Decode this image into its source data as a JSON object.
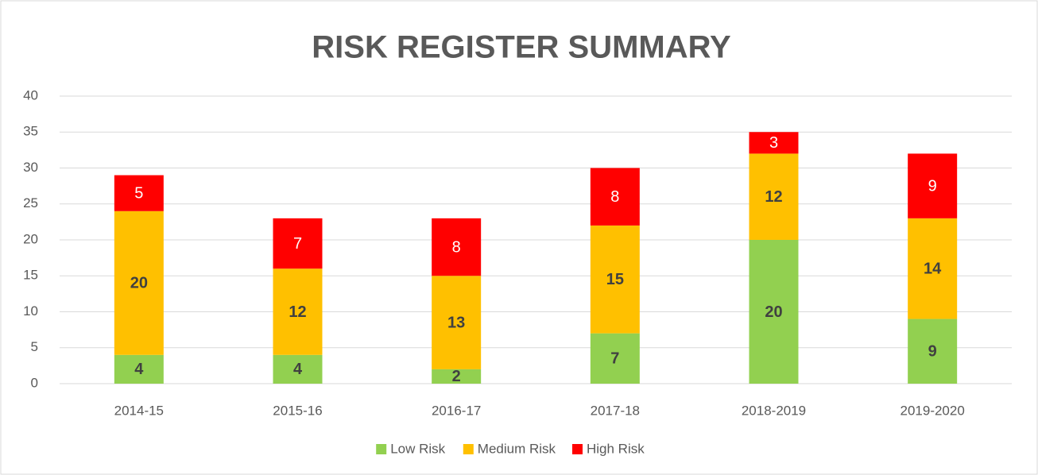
{
  "chart_data": {
    "type": "stacked_bar",
    "title": "RISK REGISTER SUMMARY",
    "categories": [
      "2014-15",
      "2015-16",
      "2016-17",
      "2017-18",
      "2018-2019",
      "2019-2020"
    ],
    "series": [
      {
        "name": "Low Risk",
        "color": "#92d050",
        "values": [
          4,
          4,
          2,
          7,
          20,
          9
        ]
      },
      {
        "name": "Medium Risk",
        "color": "#ffc000",
        "values": [
          20,
          12,
          13,
          15,
          12,
          14
        ]
      },
      {
        "name": "High Risk",
        "color": "#ff0000",
        "values": [
          5,
          7,
          8,
          8,
          3,
          9
        ]
      }
    ],
    "ylim": [
      0,
      40
    ],
    "yticks": [
      0,
      5,
      10,
      15,
      20,
      25,
      30,
      35,
      40
    ],
    "grid": true,
    "legend": "bottom"
  }
}
